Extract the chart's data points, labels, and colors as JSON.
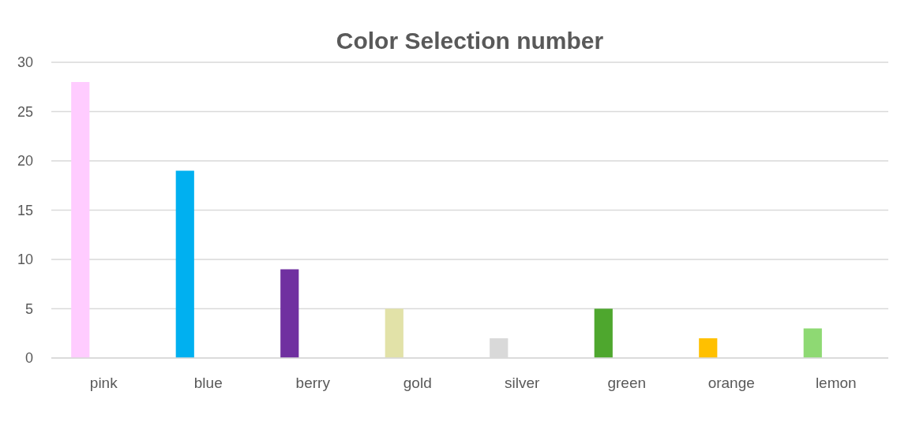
{
  "chart_data": {
    "type": "bar",
    "title": "Color Selection number",
    "categories": [
      "pink",
      "blue",
      "berry",
      "gold",
      "silver",
      "green",
      "orange",
      "lemon"
    ],
    "values": [
      28,
      19,
      9,
      5,
      2,
      5,
      2,
      3
    ],
    "colors": [
      "#ffccff",
      "#00b0f0",
      "#7030a0",
      "#e2e2a8",
      "#d9d9d9",
      "#4ea72e",
      "#ffc000",
      "#8ed973"
    ],
    "ylim": [
      0,
      30
    ],
    "yticks": [
      0,
      5,
      10,
      15,
      20,
      25,
      30
    ],
    "grid": "y"
  }
}
